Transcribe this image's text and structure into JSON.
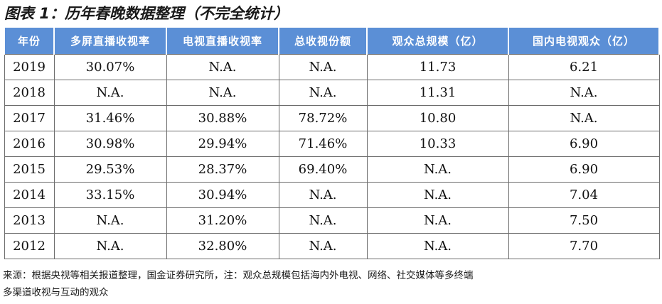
{
  "title": "图表 1：历年春晚数据整理（不完全统计）",
  "table": {
    "headers": [
      "年份",
      "多屏直播收视率",
      "电视直播收视率",
      "总收视份额",
      "观众总规模（亿）",
      "国内电视观众（亿）"
    ],
    "rows": [
      [
        "2019",
        "30.07%",
        "N.A.",
        "N.A.",
        "11.73",
        "6.21"
      ],
      [
        "2018",
        "N.A.",
        "N.A.",
        "N.A.",
        "11.31",
        "N.A."
      ],
      [
        "2017",
        "31.46%",
        "30.88%",
        "78.72%",
        "10.80",
        "N.A."
      ],
      [
        "2016",
        "30.98%",
        "29.94%",
        "71.46%",
        "10.33",
        "6.90"
      ],
      [
        "2015",
        "29.53%",
        "28.37%",
        "69.40%",
        "N.A.",
        "6.90"
      ],
      [
        "2014",
        "33.15%",
        "30.94%",
        "N.A.",
        "N.A.",
        "7.04"
      ],
      [
        "2013",
        "N.A.",
        "31.20%",
        "N.A.",
        "N.A.",
        "7.50"
      ],
      [
        "2012",
        "N.A.",
        "32.80%",
        "N.A.",
        "N.A.",
        "7.70"
      ]
    ]
  },
  "source": {
    "line1": "来源：根据央视等相关报道整理，国金证券研究所，注：观众总规模包括海内外电视、网络、社交媒体等多终端",
    "line2": "多渠道收视与互动的观众"
  },
  "colors": {
    "header_bg": "#5b8fd6",
    "header_text": "#ffffff",
    "border": "#6d6d6d"
  }
}
